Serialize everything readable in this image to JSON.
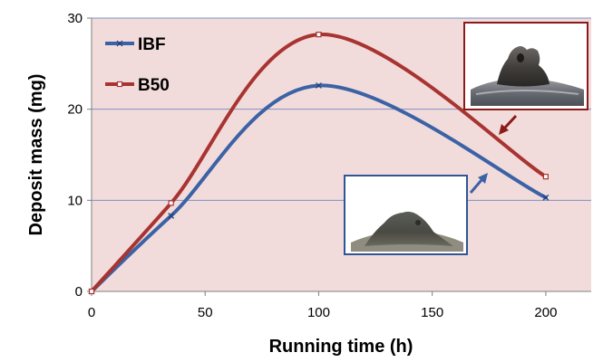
{
  "chart_data": {
    "type": "line",
    "title": "",
    "xlabel": "Running time (h)",
    "ylabel": "Deposit mass (mg)",
    "xlim": [
      0,
      220
    ],
    "ylim": [
      0,
      30
    ],
    "x_ticks": [
      0,
      50,
      100,
      150,
      200
    ],
    "y_ticks": [
      0,
      10,
      20,
      30
    ],
    "grid": "horizontal",
    "legend_position": "top-left",
    "background_color": "#f2dcdb",
    "series": [
      {
        "name": "IBF",
        "color": "#3c62a6",
        "marker": "x",
        "x": [
          0,
          35,
          100,
          200
        ],
        "y": [
          0,
          8.3,
          22.6,
          10.3
        ]
      },
      {
        "name": "B50",
        "color": "#a83432",
        "marker": "square",
        "x": [
          0,
          35,
          100,
          200
        ],
        "y": [
          0,
          9.7,
          28.2,
          12.6
        ]
      }
    ],
    "annotations": [
      {
        "type": "photo",
        "description_key": "B50 deposit inset",
        "frame_color": "#8b1a1a",
        "arrow_color": "#8b1a1a"
      },
      {
        "type": "photo",
        "description_key": "IBF deposit inset",
        "frame_color": "#2f5597",
        "arrow_color": "#3c62a6"
      }
    ]
  }
}
